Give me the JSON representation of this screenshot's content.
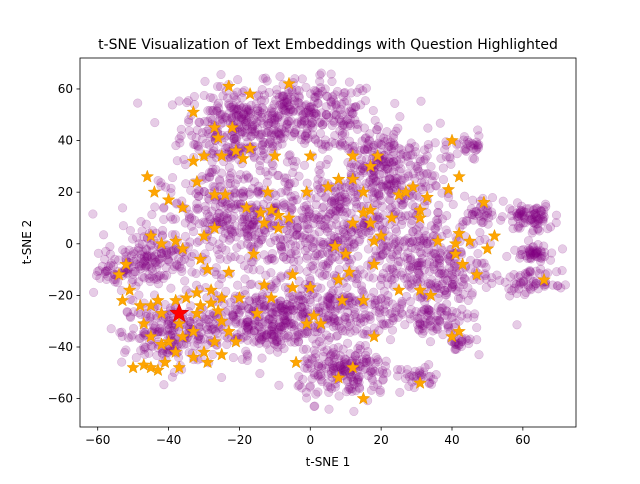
{
  "chart_data": {
    "type": "scatter",
    "title": "t-SNE Visualization of Text Embeddings with Question Highlighted",
    "xlabel": "t-SNE  1",
    "ylabel": "t-SNE  2",
    "xlim": [
      -65,
      75
    ],
    "ylim": [
      -71,
      72
    ],
    "x_ticks": [
      -60,
      -40,
      -20,
      0,
      20,
      40,
      60
    ],
    "y_ticks": [
      -60,
      -40,
      -20,
      0,
      20,
      40,
      60
    ],
    "grid": false,
    "legend": "none",
    "colors": {
      "embeddings": "#800080",
      "highlights": "#FFA500",
      "question": "#FF0000"
    },
    "series": [
      {
        "marker": "circle",
        "color": "#800080",
        "clusters": [
          {
            "cx": -20,
            "cy": 45,
            "rx": 15,
            "ry": 15,
            "n": 300
          },
          {
            "cx": 0,
            "cy": 50,
            "rx": 18,
            "ry": 12,
            "n": 250
          },
          {
            "cx": 20,
            "cy": 30,
            "rx": 15,
            "ry": 15,
            "n": 250
          },
          {
            "cx": -20,
            "cy": 10,
            "rx": 20,
            "ry": 18,
            "n": 350
          },
          {
            "cx": 10,
            "cy": 5,
            "rx": 25,
            "ry": 22,
            "n": 450
          },
          {
            "cx": 35,
            "cy": -10,
            "rx": 15,
            "ry": 18,
            "n": 250
          },
          {
            "cx": -45,
            "cy": -5,
            "rx": 10,
            "ry": 10,
            "n": 150
          },
          {
            "cx": -40,
            "cy": -35,
            "rx": 12,
            "ry": 12,
            "n": 200
          },
          {
            "cx": -15,
            "cy": -30,
            "rx": 15,
            "ry": 12,
            "n": 250
          },
          {
            "cx": 5,
            "cy": -25,
            "rx": 20,
            "ry": 12,
            "n": 250
          },
          {
            "cx": 10,
            "cy": -50,
            "rx": 12,
            "ry": 10,
            "n": 200
          },
          {
            "cx": 62,
            "cy": 10,
            "rx": 6,
            "ry": 5,
            "n": 80
          },
          {
            "cx": 63,
            "cy": -3,
            "rx": 5,
            "ry": 3,
            "n": 50
          },
          {
            "cx": 62,
            "cy": -15,
            "rx": 7,
            "ry": 4,
            "n": 60
          },
          {
            "cx": 48,
            "cy": 12,
            "rx": 5,
            "ry": 6,
            "n": 40
          },
          {
            "cx": 45,
            "cy": 38,
            "rx": 5,
            "ry": 4,
            "n": 30
          },
          {
            "cx": 35,
            "cy": -30,
            "rx": 8,
            "ry": 6,
            "n": 60
          },
          {
            "cx": 42,
            "cy": -38,
            "rx": 4,
            "ry": 3,
            "n": 25
          },
          {
            "cx": 30,
            "cy": -52,
            "rx": 6,
            "ry": 4,
            "n": 30
          },
          {
            "cx": -55,
            "cy": -10,
            "rx": 5,
            "ry": 6,
            "n": 40
          }
        ]
      },
      {
        "marker": "star",
        "color": "#FFA500",
        "points": [
          [
            -23,
            61
          ],
          [
            -17,
            58
          ],
          [
            -6,
            62
          ],
          [
            -33,
            51
          ],
          [
            -27,
            45
          ],
          [
            -22,
            45
          ],
          [
            -33,
            32
          ],
          [
            -30,
            34
          ],
          [
            -26,
            41
          ],
          [
            -25,
            34
          ],
          [
            -21,
            36
          ],
          [
            -17,
            37
          ],
          [
            -19,
            33
          ],
          [
            -10,
            34
          ],
          [
            0,
            34
          ],
          [
            12,
            34
          ],
          [
            -32,
            24
          ],
          [
            -27,
            19
          ],
          [
            -24,
            19
          ],
          [
            -12,
            20
          ],
          [
            -18,
            14
          ],
          [
            -14,
            12
          ],
          [
            -11,
            13
          ],
          [
            -9,
            11
          ],
          [
            -6,
            10
          ],
          [
            -13,
            8
          ],
          [
            -9,
            6
          ],
          [
            -1,
            20
          ],
          [
            5,
            22
          ],
          [
            8,
            25
          ],
          [
            12,
            25
          ],
          [
            17,
            30
          ],
          [
            19,
            34
          ],
          [
            15,
            20
          ],
          [
            17,
            13
          ],
          [
            12,
            8
          ],
          [
            15,
            12
          ],
          [
            17,
            8
          ],
          [
            18,
            1
          ],
          [
            20,
            3
          ],
          [
            23,
            10
          ],
          [
            25,
            19
          ],
          [
            27,
            20
          ],
          [
            29,
            22
          ],
          [
            31,
            13
          ],
          [
            31,
            10
          ],
          [
            33,
            18
          ],
          [
            39,
            21
          ],
          [
            42,
            26
          ],
          [
            40,
            40
          ],
          [
            36,
            1
          ],
          [
            41,
            0
          ],
          [
            42,
            4
          ],
          [
            41,
            -4
          ],
          [
            43,
            -8
          ],
          [
            45,
            1
          ],
          [
            47,
            -12
          ],
          [
            49,
            16
          ],
          [
            50,
            -2
          ],
          [
            52,
            3
          ],
          [
            66,
            -14
          ],
          [
            -46,
            26
          ],
          [
            -44,
            20
          ],
          [
            -40,
            17
          ],
          [
            -36,
            14
          ],
          [
            -45,
            3
          ],
          [
            -42,
            0
          ],
          [
            -38,
            1
          ],
          [
            -36,
            -2
          ],
          [
            -30,
            3
          ],
          [
            -27,
            6
          ],
          [
            -31,
            -6
          ],
          [
            -29,
            -10
          ],
          [
            -23,
            -11
          ],
          [
            -16,
            -4
          ],
          [
            -5,
            -12
          ],
          [
            0,
            -17
          ],
          [
            8,
            -14
          ],
          [
            11,
            -11
          ],
          [
            -5,
            -17
          ],
          [
            -13,
            -16
          ],
          [
            -11,
            -21
          ],
          [
            7,
            -1
          ],
          [
            10,
            -4
          ],
          [
            18,
            -8
          ],
          [
            25,
            -18
          ],
          [
            31,
            -18
          ],
          [
            34,
            -20
          ],
          [
            15,
            -22
          ],
          [
            9,
            -22
          ],
          [
            -15,
            -27
          ],
          [
            -20,
            -21
          ],
          [
            -25,
            -21
          ],
          [
            -28,
            -18
          ],
          [
            -31,
            -24
          ],
          [
            -25,
            -30
          ],
          [
            -23,
            -34
          ],
          [
            -21,
            -38
          ],
          [
            -27,
            -38
          ],
          [
            -30,
            -42
          ],
          [
            -25,
            -43
          ],
          [
            -4,
            -46
          ],
          [
            -1,
            -31
          ],
          [
            3,
            -31
          ],
          [
            1,
            -28
          ],
          [
            8,
            -52
          ],
          [
            12,
            -48
          ],
          [
            15,
            -60
          ],
          [
            31,
            -54
          ],
          [
            42,
            -34
          ],
          [
            40,
            -36
          ],
          [
            18,
            -36
          ],
          [
            -41,
            -46
          ],
          [
            -43,
            -49
          ],
          [
            -37,
            -48
          ],
          [
            -40,
            -38
          ],
          [
            -36,
            -36
          ],
          [
            -33,
            -34
          ],
          [
            -37,
            -31
          ],
          [
            -32,
            -27
          ],
          [
            -45,
            -24
          ],
          [
            -48,
            -24
          ],
          [
            -43,
            -22
          ],
          [
            -42,
            -27
          ],
          [
            -38,
            -22
          ],
          [
            -35,
            -21
          ],
          [
            -32,
            -19
          ],
          [
            -28,
            -23
          ],
          [
            -26,
            -26
          ],
          [
            -47,
            -31
          ],
          [
            -45,
            -36
          ],
          [
            -42,
            -39
          ],
          [
            -38,
            -42
          ],
          [
            -33,
            -44
          ],
          [
            -29,
            -46
          ],
          [
            -47,
            -47
          ],
          [
            -45,
            -48
          ],
          [
            -50,
            -48
          ],
          [
            -52,
            -8
          ],
          [
            -54,
            -12
          ],
          [
            -51,
            -18
          ],
          [
            -53,
            -22
          ]
        ]
      },
      {
        "marker": "star",
        "color": "#FF0000",
        "points": [
          [
            -37,
            -27
          ]
        ]
      }
    ]
  }
}
